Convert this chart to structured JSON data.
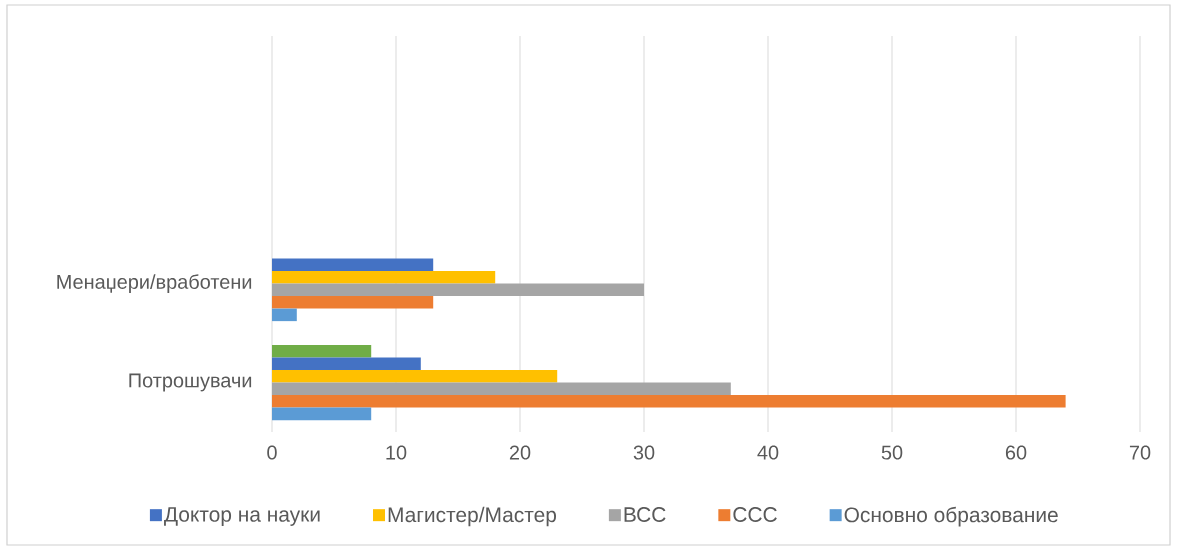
{
  "chart_data": {
    "type": "bar",
    "orientation": "horizontal",
    "categories": [
      null,
      null,
      "Менаџери/вработени",
      "Потрошувачи"
    ],
    "series": [
      {
        "color": "#70ad47",
        "values": [
          null,
          null,
          null,
          8
        ]
      },
      {
        "name": "Доктор на науки",
        "color": "#4472c4",
        "values": [
          null,
          null,
          13,
          12
        ]
      },
      {
        "name": "Магистер/Мастер",
        "color": "#ffc000",
        "values": [
          null,
          null,
          18,
          23
        ]
      },
      {
        "name": "ВСС",
        "color": "#a5a5a5",
        "values": [
          null,
          null,
          30,
          37
        ]
      },
      {
        "name": "ССС",
        "color": "#ed7d31",
        "values": [
          null,
          null,
          13,
          64
        ]
      },
      {
        "name": "Основно образование",
        "color": "#5b9bd5",
        "values": [
          null,
          null,
          2,
          8
        ]
      }
    ],
    "xlim": [
      0,
      70
    ],
    "xticks": [
      0,
      10,
      20,
      30,
      40,
      50,
      60,
      70
    ],
    "grid": "x",
    "legend": "bottom"
  }
}
